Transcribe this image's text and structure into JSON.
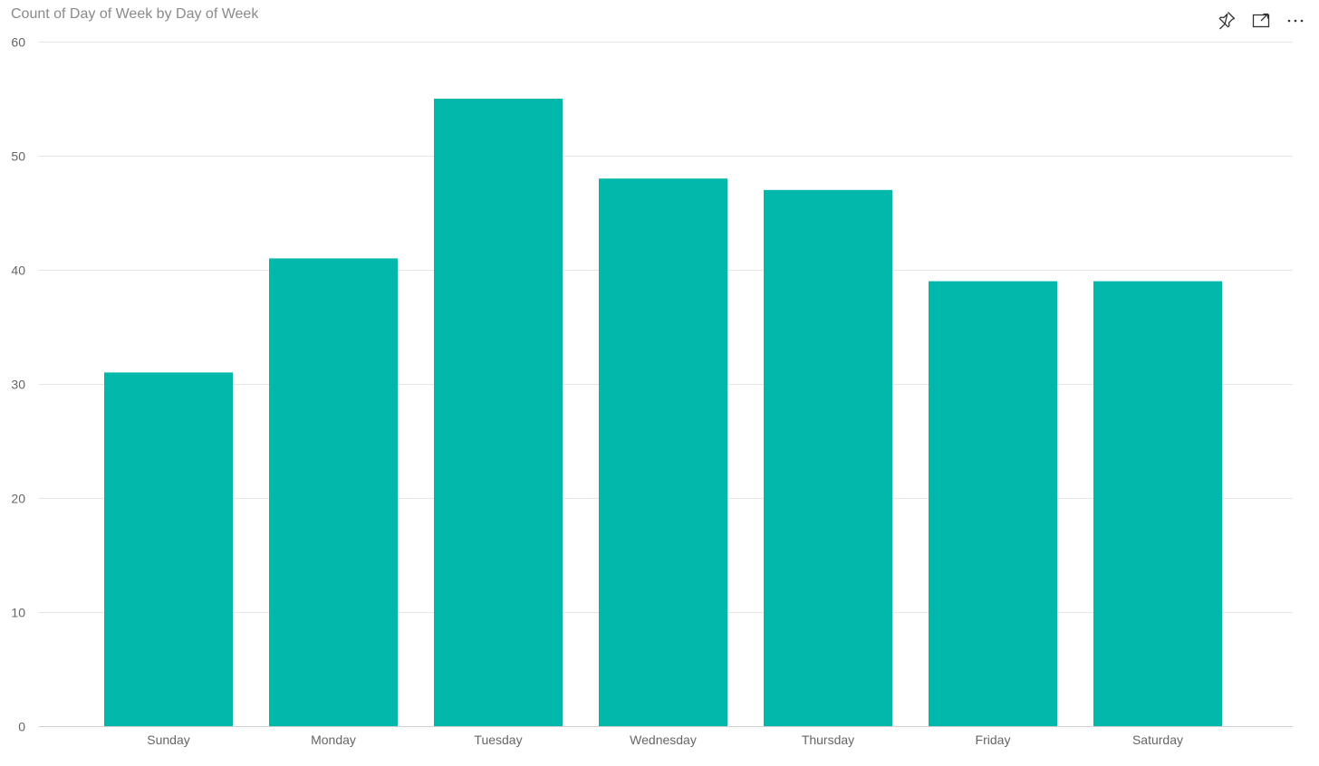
{
  "header": {
    "title": "Count of Day of Week by Day of Week",
    "actions": [
      {
        "name": "pin-icon",
        "label": "Pin visual"
      },
      {
        "name": "focus-mode-icon",
        "label": "Focus mode"
      },
      {
        "name": "more-options-icon",
        "label": "More options"
      }
    ]
  },
  "colors": {
    "bar": "#01b8aa",
    "gridline": "#e6e6e6",
    "axis_text": "#666666",
    "title_text": "#8a8a8a"
  },
  "chart_data": {
    "type": "bar",
    "title": "Count of Day of Week by Day of Week",
    "xlabel": "",
    "ylabel": "",
    "categories": [
      "Sunday",
      "Monday",
      "Tuesday",
      "Wednesday",
      "Thursday",
      "Friday",
      "Saturday"
    ],
    "values": [
      31,
      41,
      55,
      48,
      47,
      39,
      39
    ],
    "ylim": [
      0,
      60
    ],
    "yticks": [
      0,
      10,
      20,
      30,
      40,
      50,
      60
    ],
    "grid": true,
    "legend": "none"
  }
}
